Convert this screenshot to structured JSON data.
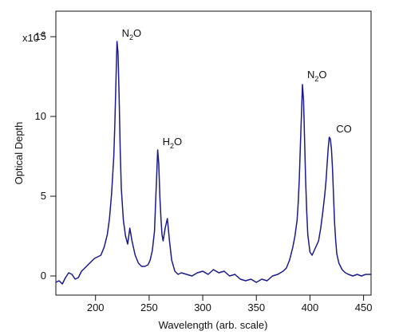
{
  "chart_data": {
    "type": "line",
    "title": "",
    "xlabel": "Wavelength (arb. scale)",
    "ylabel": "Optical Depth",
    "ylabel_exponent_note": "x10",
    "ylabel_exponent_power": "-3",
    "xlim": [
      163,
      457
    ],
    "ylim": [
      -0.0012,
      0.0166
    ],
    "x_ticks": [
      200,
      250,
      300,
      350,
      400,
      450
    ],
    "y_ticks": [
      {
        "value": 0,
        "label": "0"
      },
      {
        "value": 0.005,
        "label": "5"
      },
      {
        "value": 0.01,
        "label": "10"
      },
      {
        "value": 0.015,
        "label": "15"
      }
    ],
    "grid": false,
    "colors": {
      "series": "#1a1a8c"
    },
    "annotations": [
      {
        "id": "n2o-1",
        "x": 220,
        "y": 0.0148,
        "base": "N",
        "sub": "2",
        "rest": "O"
      },
      {
        "id": "h2o",
        "x": 258,
        "y": 0.008,
        "base": "H",
        "sub": "2",
        "rest": "O"
      },
      {
        "id": "n2o-2",
        "x": 393,
        "y": 0.0122,
        "base": "N",
        "sub": "2",
        "rest": "O"
      },
      {
        "id": "co",
        "x": 420,
        "y": 0.0088,
        "base": "CO",
        "sub": "",
        "rest": ""
      }
    ],
    "series": [
      {
        "x": [
          163,
          166,
          169,
          172,
          175,
          178,
          181,
          184,
          187,
          190,
          193,
          196,
          199,
          202,
          205,
          208,
          211,
          213,
          215,
          217,
          218,
          219,
          220,
          221,
          222,
          223,
          224,
          226,
          228,
          230,
          232,
          234,
          237,
          240,
          243,
          246,
          249,
          251,
          253,
          255,
          256,
          257,
          258,
          259,
          260,
          261,
          262,
          263,
          265,
          267,
          269,
          271,
          274,
          277,
          280,
          285,
          290,
          295,
          300,
          305,
          310,
          315,
          320,
          325,
          330,
          335,
          340,
          345,
          350,
          355,
          360,
          365,
          370,
          375,
          378,
          381,
          384,
          386,
          388,
          389,
          390,
          391,
          392,
          393,
          394,
          395,
          396,
          397,
          398,
          400,
          402,
          404,
          406,
          408,
          410,
          412,
          414,
          415,
          416,
          417,
          418,
          419,
          420,
          421,
          422,
          423,
          424,
          425,
          427,
          430,
          433,
          436,
          440,
          444,
          448,
          452,
          457
        ],
        "y": [
          -0.0004,
          -0.0003,
          -0.0005,
          -0.0001,
          0.0002,
          0.0001,
          -0.0002,
          -0.0001,
          0.0003,
          0.0005,
          0.0007,
          0.0009,
          0.0011,
          0.0012,
          0.0013,
          0.0018,
          0.0026,
          0.0036,
          0.0052,
          0.0075,
          0.0095,
          0.012,
          0.0147,
          0.014,
          0.0112,
          0.008,
          0.0055,
          0.0035,
          0.0025,
          0.002,
          0.003,
          0.0022,
          0.0013,
          0.0008,
          0.0006,
          0.0006,
          0.0007,
          0.001,
          0.0016,
          0.0028,
          0.0045,
          0.0062,
          0.0079,
          0.007,
          0.005,
          0.0036,
          0.0026,
          0.0022,
          0.003,
          0.0036,
          0.0022,
          0.001,
          0.0003,
          0.0001,
          0.0002,
          0.0001,
          0.0,
          0.0002,
          0.0003,
          0.0001,
          0.0004,
          0.0002,
          0.0003,
          0.0,
          0.0001,
          -0.0002,
          -0.0003,
          -0.0002,
          -0.0004,
          -0.0002,
          -0.0003,
          0.0,
          0.0001,
          0.0003,
          0.0005,
          0.001,
          0.0018,
          0.0025,
          0.0035,
          0.0045,
          0.006,
          0.008,
          0.01,
          0.012,
          0.011,
          0.0085,
          0.006,
          0.004,
          0.0026,
          0.0015,
          0.0013,
          0.0016,
          0.0019,
          0.0022,
          0.003,
          0.004,
          0.0052,
          0.006,
          0.007,
          0.008,
          0.0087,
          0.0086,
          0.008,
          0.0068,
          0.005,
          0.0033,
          0.0022,
          0.0014,
          0.0008,
          0.0004,
          0.0002,
          0.0001,
          0.0,
          0.0001,
          0.0,
          0.0001,
          0.0001
        ]
      }
    ]
  }
}
